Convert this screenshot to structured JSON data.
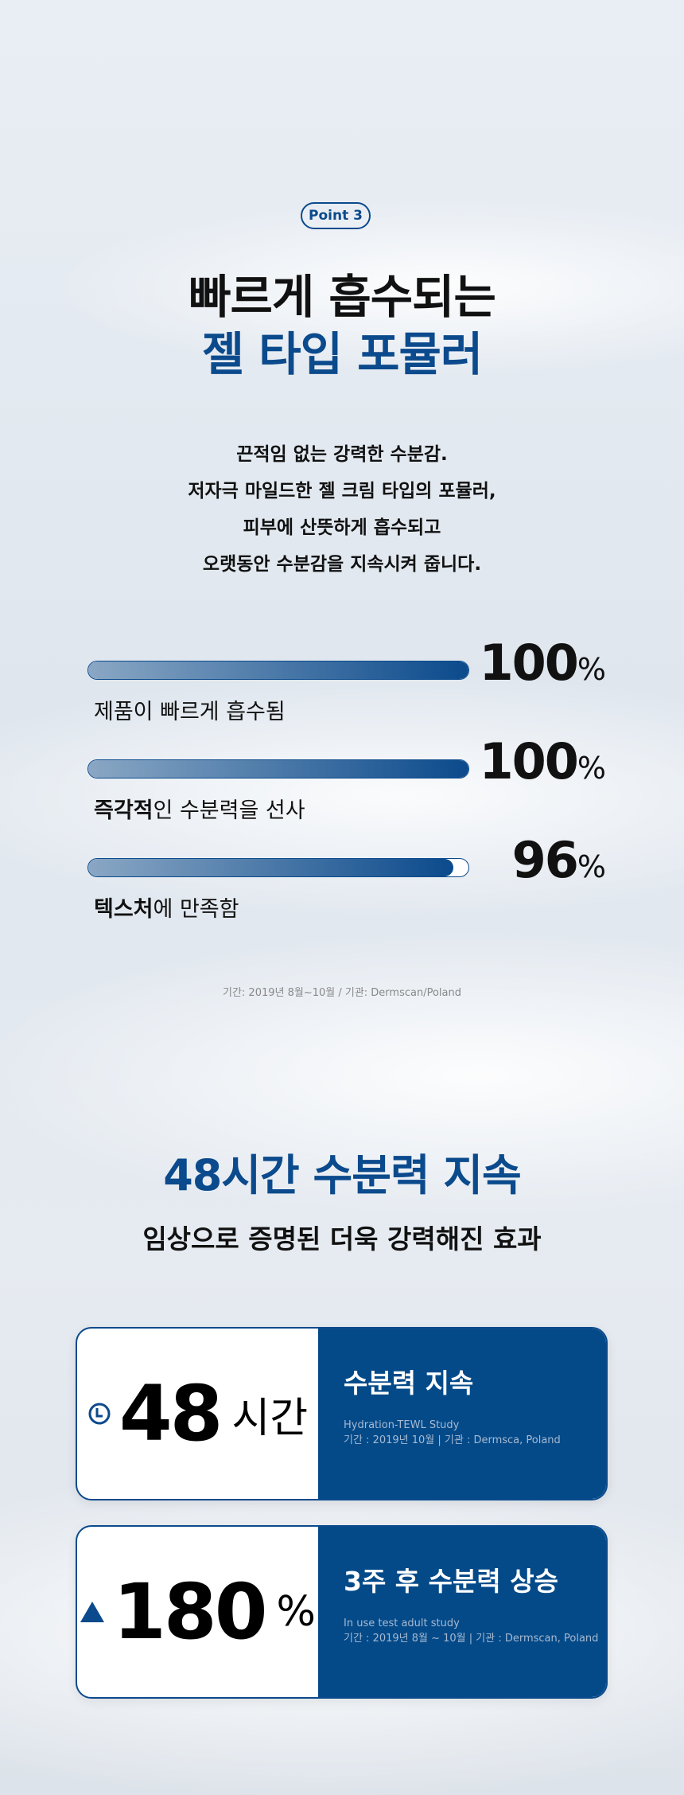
{
  "badge": "Point 3",
  "title": {
    "line1": "빠르게 흡수되는",
    "line2": "젤 타입 포뮬러"
  },
  "description": [
    "끈적임 없는 강력한 수분감.",
    "저자극 마일드한 젤 크림 타입의 포뮬러,",
    "피부에 산뜻하게 흡수되고",
    "오랫동안 수분감을 지속시켜 줍니다."
  ],
  "stats": [
    {
      "value": "100",
      "unit": "%",
      "percent": 100,
      "label_bold": "",
      "label_rest": "제품이 빠르게 흡수됨"
    },
    {
      "value": "100",
      "unit": "%",
      "percent": 100,
      "label_bold": "즉각적",
      "label_rest": "인 수분력을 선사"
    },
    {
      "value": "96",
      "unit": "%",
      "percent": 96,
      "label_bold": "텍스처",
      "label_rest": "에 만족함"
    }
  ],
  "footnote": "기간: 2019년 8월~10월 / 기관: Dermscan/Poland",
  "section2": {
    "title": "48시간 수분력 지속",
    "subtitle": "임상으로 증명된 더욱 강력해진 효과"
  },
  "cards": [
    {
      "icon": "clock-icon",
      "value": "48",
      "unit": "시간",
      "title": "수분력 지속",
      "study": "Hydration-TEWL Study",
      "period": "기간 : 2019년 10월 | 기관 : Dermsca, Poland"
    },
    {
      "icon": "triangle-up-icon",
      "value": "180",
      "unit": "%",
      "title": "3주 후 수분력 상승",
      "study": "In use test adult study",
      "period": "기간 : 2019년 8월 ~ 10월 | 기관 : Dermscan, Poland"
    }
  ],
  "colors": {
    "accent": "#0b4a8c",
    "card_blue": "#044a89"
  }
}
